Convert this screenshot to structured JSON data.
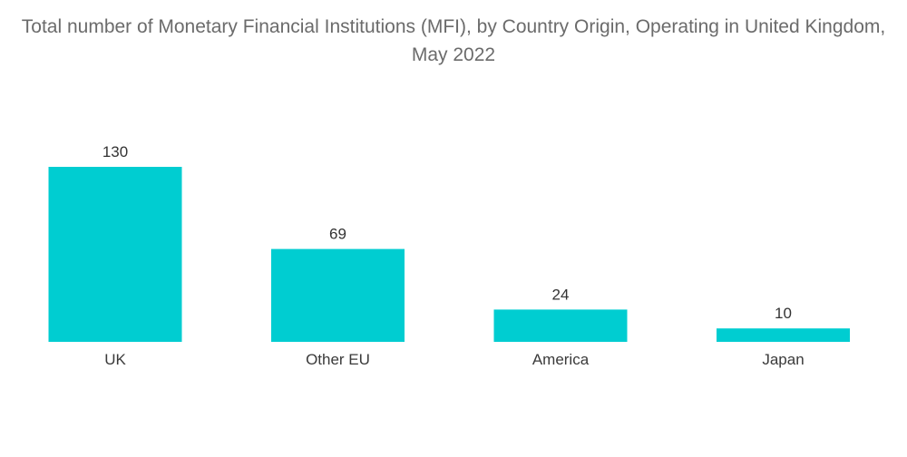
{
  "chart_data": {
    "type": "bar",
    "title": "Total number of Monetary Financial Institutions (MFI), by Country Origin, Operating in United Kingdom, May 2022",
    "categories": [
      "UK",
      "Other EU",
      "America",
      "Japan"
    ],
    "values": [
      130,
      69,
      24,
      10
    ],
    "xlabel": "",
    "ylabel": "",
    "ylim": [
      0,
      130
    ],
    "grid": false,
    "legend": "none",
    "bar_color": "#00cdd1",
    "data_labels": true
  }
}
